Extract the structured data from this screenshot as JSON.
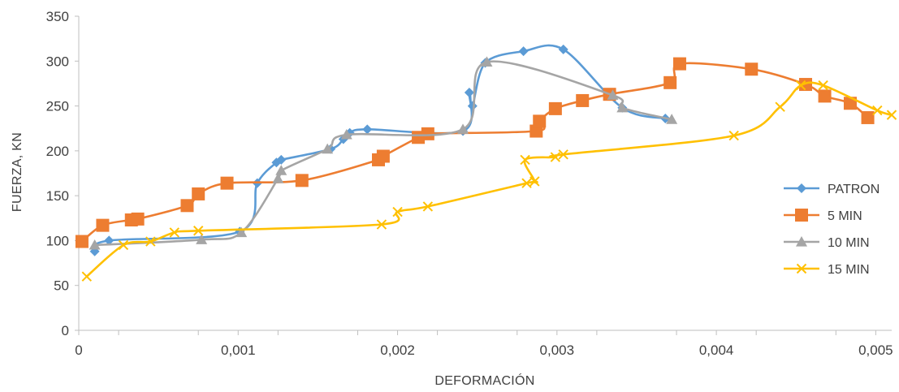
{
  "chart_data": {
    "type": "line",
    "title": "",
    "xlabel": "DEFORMACIÓN",
    "ylabel": "FUERZA, KN",
    "xlim": [
      0,
      0.0051
    ],
    "ylim": [
      0,
      350
    ],
    "x_ticks": [
      0,
      0.001,
      0.002,
      0.003,
      0.004,
      0.005
    ],
    "x_tick_labels": [
      "0",
      "0,001",
      "0,002",
      "0,003",
      "0,004",
      "0,005"
    ],
    "y_ticks": [
      0,
      50,
      100,
      150,
      200,
      250,
      300,
      350
    ],
    "y_tick_labels": [
      "0",
      "50",
      "100",
      "150",
      "200",
      "250",
      "300",
      "350"
    ],
    "grid": false,
    "legend_position": "right",
    "series": [
      {
        "name": "PATRON",
        "color": "#5B9BD5",
        "marker": "diamond",
        "points": [
          [
            0.0001,
            88
          ],
          [
            0.00019,
            100
          ],
          [
            0.00101,
            110
          ],
          [
            0.00112,
            164
          ],
          [
            0.00124,
            187
          ],
          [
            0.00127,
            190
          ],
          [
            0.00158,
            202
          ],
          [
            0.00166,
            213
          ],
          [
            0.0017,
            220
          ],
          [
            0.00181,
            224
          ],
          [
            0.00241,
            222
          ],
          [
            0.00245,
            265
          ],
          [
            0.00247,
            250
          ],
          [
            0.00255,
            298
          ],
          [
            0.00279,
            311
          ],
          [
            0.00304,
            313
          ],
          [
            0.00341,
            248
          ],
          [
            0.00368,
            236
          ]
        ]
      },
      {
        "name": "5 MIN",
        "color": "#ED7D31",
        "marker": "square",
        "points": [
          [
            2e-05,
            99
          ],
          [
            0.00015,
            117
          ],
          [
            0.00033,
            123
          ],
          [
            0.00037,
            124
          ],
          [
            0.00068,
            139
          ],
          [
            0.00075,
            152
          ],
          [
            0.00093,
            164
          ],
          [
            0.0014,
            167
          ],
          [
            0.00188,
            190
          ],
          [
            0.00191,
            194
          ],
          [
            0.00213,
            215
          ],
          [
            0.00219,
            219
          ],
          [
            0.00287,
            222
          ],
          [
            0.00289,
            233
          ],
          [
            0.00299,
            247
          ],
          [
            0.00316,
            256
          ],
          [
            0.00333,
            263
          ],
          [
            0.00371,
            276
          ],
          [
            0.00377,
            297
          ],
          [
            0.00422,
            291
          ],
          [
            0.00456,
            274
          ],
          [
            0.00468,
            261
          ],
          [
            0.00484,
            253
          ],
          [
            0.00495,
            237
          ]
        ]
      },
      {
        "name": "10 MIN",
        "color": "#A5A5A5",
        "marker": "triangle",
        "points": [
          [
            0.0001,
            95
          ],
          [
            0.00077,
            101
          ],
          [
            0.00102,
            109
          ],
          [
            0.00125,
            169
          ],
          [
            0.00127,
            178
          ],
          [
            0.00156,
            202
          ],
          [
            0.00168,
            218
          ],
          [
            0.00241,
            224
          ],
          [
            0.00256,
            299
          ],
          [
            0.00335,
            262
          ],
          [
            0.00341,
            248
          ],
          [
            0.00372,
            235
          ]
        ]
      },
      {
        "name": "15 MIN",
        "color": "#FFC000",
        "marker": "x",
        "points": [
          [
            5e-05,
            60
          ],
          [
            0.00028,
            95
          ],
          [
            0.00045,
            99
          ],
          [
            0.0006,
            109
          ],
          [
            0.00075,
            111
          ],
          [
            0.0019,
            118
          ],
          [
            0.002,
            132
          ],
          [
            0.00219,
            138
          ],
          [
            0.00281,
            164
          ],
          [
            0.00286,
            166
          ],
          [
            0.0028,
            190
          ],
          [
            0.00299,
            193
          ],
          [
            0.00304,
            196
          ],
          [
            0.00411,
            217
          ],
          [
            0.0044,
            249
          ],
          [
            0.00453,
            273
          ],
          [
            0.00467,
            273
          ],
          [
            0.00501,
            245
          ],
          [
            0.0051,
            240
          ]
        ]
      }
    ]
  }
}
